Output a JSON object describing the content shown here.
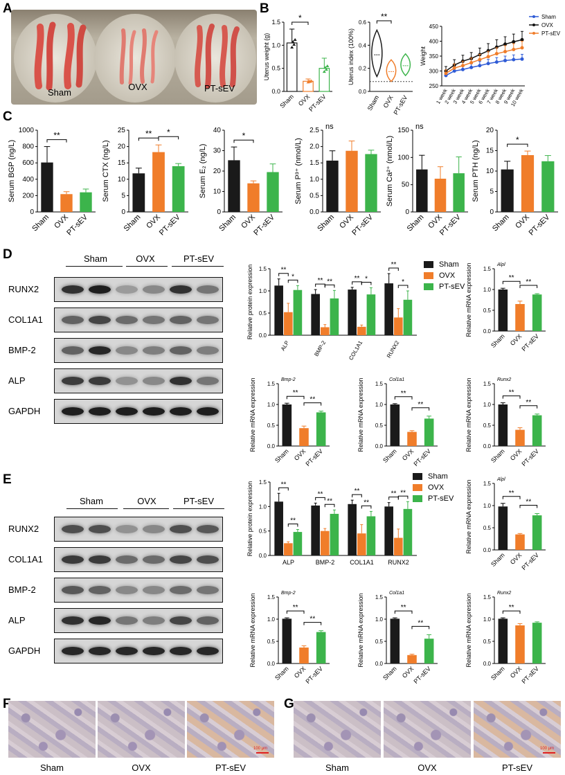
{
  "colors": {
    "sham": "#1a1a1a",
    "ovx": "#f07d2a",
    "ptsev": "#3cb44b",
    "line_sham": "#2f5bd6",
    "line_ovx": "#111111",
    "line_ptsev": "#f07d2a"
  },
  "panels": {
    "A": {
      "letter": "A",
      "labels": [
        "Sham",
        "OVX",
        "PT-sEV"
      ]
    },
    "B": {
      "letter": "B"
    },
    "C": {
      "letter": "C"
    },
    "D": {
      "letter": "D",
      "blot": {
        "groups": [
          "Sham",
          "OVX",
          "PT-sEV"
        ],
        "rows": [
          "RUNX2",
          "COL1A1",
          "BMP-2",
          "ALP",
          "GAPDH"
        ]
      },
      "legend": [
        "Sham",
        "OVX",
        "PT-sEV"
      ]
    },
    "E": {
      "letter": "E",
      "blot": {
        "groups": [
          "Sham",
          "OVX",
          "PT-sEV"
        ],
        "rows": [
          "RUNX2",
          "COL1A1",
          "BMP-2",
          "ALP",
          "GAPDH"
        ]
      },
      "legend": [
        "Sham",
        "OVX",
        "PT-sEV"
      ]
    },
    "F": {
      "letter": "F",
      "labels": [
        "Sham",
        "OVX",
        "PT-sEV"
      ],
      "scale": "100 μm"
    },
    "G": {
      "letter": "G",
      "labels": [
        "Sham",
        "OVX",
        "PT-sEV"
      ],
      "scale": "100 μm"
    }
  },
  "chart_data": [
    {
      "id": "B1",
      "type": "bar",
      "ylabel": "Uterus weight (g)",
      "categories": [
        "Sham",
        "OVX",
        "PT-sEV"
      ],
      "values": [
        1.05,
        0.22,
        0.5
      ],
      "errors": [
        0.3,
        0.05,
        0.22
      ],
      "ylim": [
        0,
        1.5
      ],
      "yticks": [
        "0.0",
        "0.5",
        "1.0",
        "1.5"
      ],
      "significance": [
        {
          "from": 0,
          "to": 1,
          "label": "*"
        }
      ],
      "style": "hollow-points"
    },
    {
      "id": "B2",
      "type": "violin",
      "ylabel": "Uterus index (100%)",
      "categories": [
        "Sham",
        "OVX",
        "PT-sEV"
      ],
      "medians": [
        0.27,
        0.1,
        0.16
      ],
      "ylim": [
        -0.1,
        0.6
      ],
      "yticks": [
        "0.0",
        "0.2",
        "0.4",
        "0.6"
      ],
      "significance": [
        {
          "from": 0,
          "to": 1,
          "label": "**"
        }
      ]
    },
    {
      "id": "B3",
      "type": "line",
      "ylabel": "Weight",
      "x": [
        "1 week",
        "2 week",
        "3 week",
        "4 week",
        "5 week",
        "6 week",
        "7 week",
        "8 week",
        "9 week",
        "10 week"
      ],
      "ylim": [
        250,
        450
      ],
      "yticks": [
        "250",
        "300",
        "350",
        "400",
        "450"
      ],
      "series": [
        {
          "name": "Sham",
          "values": [
            285,
            300,
            305,
            312,
            318,
            325,
            330,
            335,
            338,
            340
          ],
          "errors": [
            10,
            10,
            12,
            12,
            14,
            14,
            15,
            15,
            16,
            16
          ]
        },
        {
          "name": "OVX",
          "values": [
            300,
            320,
            333,
            342,
            355,
            368,
            380,
            390,
            398,
            405
          ],
          "errors": [
            15,
            18,
            20,
            20,
            22,
            24,
            25,
            25,
            26,
            28
          ]
        },
        {
          "name": "PT-sEV",
          "values": [
            292,
            310,
            318,
            328,
            338,
            348,
            358,
            365,
            372,
            378
          ],
          "errors": [
            12,
            14,
            15,
            16,
            18,
            18,
            20,
            20,
            20,
            22
          ]
        }
      ]
    },
    {
      "id": "C1",
      "type": "bar",
      "ylabel": "Serum BGP (ng/L)",
      "categories": [
        "Sham",
        "OVX",
        "PT-sEV"
      ],
      "values": [
        605,
        218,
        240
      ],
      "errors": [
        195,
        30,
        40
      ],
      "ylim": [
        0,
        1000
      ],
      "yticks": [
        "0",
        "200",
        "400",
        "600",
        "800",
        "1000"
      ],
      "significance": [
        {
          "from": 0,
          "to": 1,
          "label": "**"
        }
      ]
    },
    {
      "id": "C2",
      "type": "bar",
      "ylabel": "Serum CTX (ng/L)",
      "categories": [
        "Sham",
        "OVX",
        "PT-sEV"
      ],
      "values": [
        11.8,
        18.3,
        14.0
      ],
      "errors": [
        1.6,
        2.2,
        0.8
      ],
      "ylim": [
        0,
        25
      ],
      "yticks": [
        "0",
        "5",
        "10",
        "15",
        "20",
        "25"
      ],
      "significance": [
        {
          "from": 0,
          "to": 1,
          "label": "**"
        },
        {
          "from": 1,
          "to": 2,
          "label": "*"
        }
      ]
    },
    {
      "id": "C3",
      "type": "bar",
      "ylabel": "Serum E₂ (ng/L)",
      "categories": [
        "Sham",
        "OVX",
        "PT-sEV"
      ],
      "values": [
        25.3,
        14.0,
        19.5
      ],
      "errors": [
        6.5,
        1.2,
        4.0
      ],
      "ylim": [
        0,
        40
      ],
      "yticks": [
        "0",
        "10",
        "20",
        "30",
        "40"
      ],
      "significance": [
        {
          "from": 0,
          "to": 1,
          "label": "*"
        }
      ]
    },
    {
      "id": "C4",
      "type": "bar",
      "ylabel": "Serum P³⁺ (nmol/L)",
      "categories": [
        "Sham",
        "OVX",
        "PT-sEV"
      ],
      "values": [
        1.57,
        1.87,
        1.77
      ],
      "errors": [
        0.3,
        0.3,
        0.12
      ],
      "ylim": [
        0,
        2.5
      ],
      "yticks": [
        "0.0",
        "0.5",
        "1.0",
        "1.5",
        "2.0",
        "2.5"
      ],
      "significance": [],
      "ns": "ns"
    },
    {
      "id": "C5",
      "type": "bar",
      "ylabel": "Serum Ca²⁺ (nmol/L)",
      "categories": [
        "Sham",
        "OVX",
        "PT-sEV"
      ],
      "values": [
        78,
        61,
        71
      ],
      "errors": [
        26,
        22,
        30
      ],
      "ylim": [
        0,
        150
      ],
      "yticks": [
        "0",
        "50",
        "100",
        "150"
      ],
      "significance": [],
      "ns": "ns"
    },
    {
      "id": "C6",
      "type": "bar",
      "ylabel": "Serum PTH (ng/L)",
      "categories": [
        "Sham",
        "OVX",
        "PT-sEV"
      ],
      "values": [
        10.4,
        13.9,
        12.4
      ],
      "errors": [
        2.0,
        1.0,
        1.4
      ],
      "ylim": [
        0,
        20
      ],
      "yticks": [
        "0",
        "5",
        "10",
        "15",
        "20"
      ],
      "significance": [
        {
          "from": 0,
          "to": 1,
          "label": "*"
        }
      ]
    },
    {
      "id": "D1",
      "type": "grouped-bar",
      "ylabel": "Relative protein expression",
      "categories": [
        "ALP",
        "BMP-2",
        "COL1A1",
        "RUNX2"
      ],
      "ylim": [
        0,
        1.5
      ],
      "yticks": [
        "0.0",
        "0.5",
        "1.0",
        "1.5"
      ],
      "series": [
        {
          "name": "Sham",
          "values": [
            1.12,
            0.93,
            1.03,
            1.17
          ],
          "errors": [
            0.15,
            0.1,
            0.05,
            0.22
          ]
        },
        {
          "name": "OVX",
          "values": [
            0.52,
            0.18,
            0.19,
            0.4
          ],
          "errors": [
            0.2,
            0.06,
            0.04,
            0.2
          ]
        },
        {
          "name": "PT-sEV",
          "values": [
            1.02,
            0.83,
            0.92,
            0.8
          ],
          "errors": [
            0.1,
            0.18,
            0.15,
            0.2
          ]
        }
      ],
      "sig_labels": [
        "**",
        "*",
        "**",
        "**",
        "**",
        "*",
        "**",
        "*"
      ]
    },
    {
      "id": "D2",
      "type": "bar",
      "title": "Alpl",
      "ylabel": "Relative mRNA expression",
      "categories": [
        "Sham",
        "OVX",
        "PT-sEV"
      ],
      "values": [
        1.0,
        0.65,
        0.88
      ],
      "errors": [
        0.03,
        0.07,
        0.02
      ],
      "ylim": [
        0,
        1.5
      ],
      "yticks": [
        "0.0",
        "0.5",
        "1.0",
        "1.5"
      ],
      "significance": [
        {
          "from": 0,
          "to": 1,
          "label": "**"
        },
        {
          "from": 1,
          "to": 2,
          "label": "**"
        }
      ]
    },
    {
      "id": "D3",
      "type": "bar",
      "title": "Bmp-2",
      "ylabel": "Relative mRNA expression",
      "categories": [
        "Sham",
        "OVX",
        "PT-sEV"
      ],
      "values": [
        1.0,
        0.43,
        0.81
      ],
      "errors": [
        0.03,
        0.05,
        0.03
      ],
      "ylim": [
        0,
        1.5
      ],
      "yticks": [
        "0.0",
        "0.5",
        "1.0",
        "1.5"
      ],
      "significance": [
        {
          "from": 0,
          "to": 1,
          "label": "**"
        },
        {
          "from": 1,
          "to": 2,
          "label": "**"
        }
      ]
    },
    {
      "id": "D4",
      "type": "bar",
      "title": "Col1a1",
      "ylabel": "Relative mRNA expression",
      "categories": [
        "Sham",
        "OVX",
        "PT-sEV"
      ],
      "values": [
        1.0,
        0.34,
        0.66
      ],
      "errors": [
        0.02,
        0.03,
        0.06
      ],
      "ylim": [
        0,
        1.5
      ],
      "yticks": [
        "0.0",
        "0.5",
        "1.0",
        "1.5"
      ],
      "significance": [
        {
          "from": 0,
          "to": 1,
          "label": "**"
        },
        {
          "from": 1,
          "to": 2,
          "label": "**"
        }
      ]
    },
    {
      "id": "D5",
      "type": "bar",
      "title": "Runx2",
      "ylabel": "Relative mRNA expression",
      "categories": [
        "Sham",
        "OVX",
        "PT-sEV"
      ],
      "values": [
        1.0,
        0.39,
        0.74
      ],
      "errors": [
        0.04,
        0.05,
        0.03
      ],
      "ylim": [
        0,
        1.5
      ],
      "yticks": [
        "0.0",
        "0.5",
        "1.0",
        "1.5"
      ],
      "significance": [
        {
          "from": 0,
          "to": 1,
          "label": "**"
        },
        {
          "from": 1,
          "to": 2,
          "label": "**"
        }
      ]
    },
    {
      "id": "E1",
      "type": "grouped-bar",
      "ylabel": "Relative protein expression",
      "categories": [
        "ALP",
        "BMP-2",
        "COL1A1",
        "RUNX2"
      ],
      "ylim": [
        0,
        1.5
      ],
      "yticks": [
        "0.0",
        "0.5",
        "1.0",
        "1.5"
      ],
      "series": [
        {
          "name": "Sham",
          "values": [
            1.1,
            1.02,
            1.05,
            1.0
          ],
          "errors": [
            0.17,
            0.05,
            0.08,
            0.08
          ]
        },
        {
          "name": "OVX",
          "values": [
            0.25,
            0.5,
            0.45,
            0.36
          ],
          "errors": [
            0.03,
            0.05,
            0.18,
            0.18
          ]
        },
        {
          "name": "PT-sEV",
          "values": [
            0.48,
            0.85,
            0.8,
            0.95
          ],
          "errors": [
            0.05,
            0.08,
            0.1,
            0.15
          ]
        }
      ],
      "sig_labels": [
        "**",
        "**",
        "**",
        "**",
        "**",
        "**",
        "**",
        "**"
      ]
    },
    {
      "id": "E2",
      "type": "bar",
      "title": "Alpl",
      "ylabel": "Relative mRNA expression",
      "categories": [
        "Sham",
        "OVX",
        "PT-sEV"
      ],
      "values": [
        0.98,
        0.35,
        0.78
      ],
      "errors": [
        0.07,
        0.02,
        0.04
      ],
      "ylim": [
        0,
        1.5
      ],
      "yticks": [
        "0.0",
        "0.5",
        "1.0",
        "1.5"
      ],
      "significance": [
        {
          "from": 0,
          "to": 1,
          "label": "**"
        },
        {
          "from": 1,
          "to": 2,
          "label": "**"
        }
      ]
    },
    {
      "id": "E3",
      "type": "bar",
      "title": "Bmp-2",
      "ylabel": "Relative mRNA expression",
      "categories": [
        "Sham",
        "OVX",
        "PT-sEV"
      ],
      "values": [
        1.01,
        0.36,
        0.71
      ],
      "errors": [
        0.02,
        0.04,
        0.03
      ],
      "ylim": [
        0,
        1.5
      ],
      "yticks": [
        "0.0",
        "0.5",
        "1.0",
        "1.5"
      ],
      "significance": [
        {
          "from": 0,
          "to": 1,
          "label": "**"
        },
        {
          "from": 1,
          "to": 2,
          "label": "**"
        }
      ]
    },
    {
      "id": "E4",
      "type": "bar",
      "title": "Col1a1",
      "ylabel": "Relative mRNA expression",
      "categories": [
        "Sham",
        "OVX",
        "PT-sEV"
      ],
      "values": [
        1.01,
        0.19,
        0.56
      ],
      "errors": [
        0.02,
        0.02,
        0.09
      ],
      "ylim": [
        0,
        1.5
      ],
      "yticks": [
        "0.0",
        "0.5",
        "1.0",
        "1.5"
      ],
      "significance": [
        {
          "from": 0,
          "to": 1,
          "label": "**"
        },
        {
          "from": 1,
          "to": 2,
          "label": "**"
        }
      ]
    },
    {
      "id": "E5",
      "type": "bar",
      "title": "Runx2",
      "ylabel": "Relative mRNA expression",
      "categories": [
        "Sham",
        "OVX",
        "PT-sEV"
      ],
      "values": [
        1.01,
        0.86,
        0.92
      ],
      "errors": [
        0.02,
        0.04,
        0.02
      ],
      "ylim": [
        0,
        1.5
      ],
      "yticks": [
        "0.0",
        "0.5",
        "1.0",
        "1.5"
      ],
      "significance": [
        {
          "from": 0,
          "to": 1,
          "label": "**"
        }
      ]
    }
  ]
}
